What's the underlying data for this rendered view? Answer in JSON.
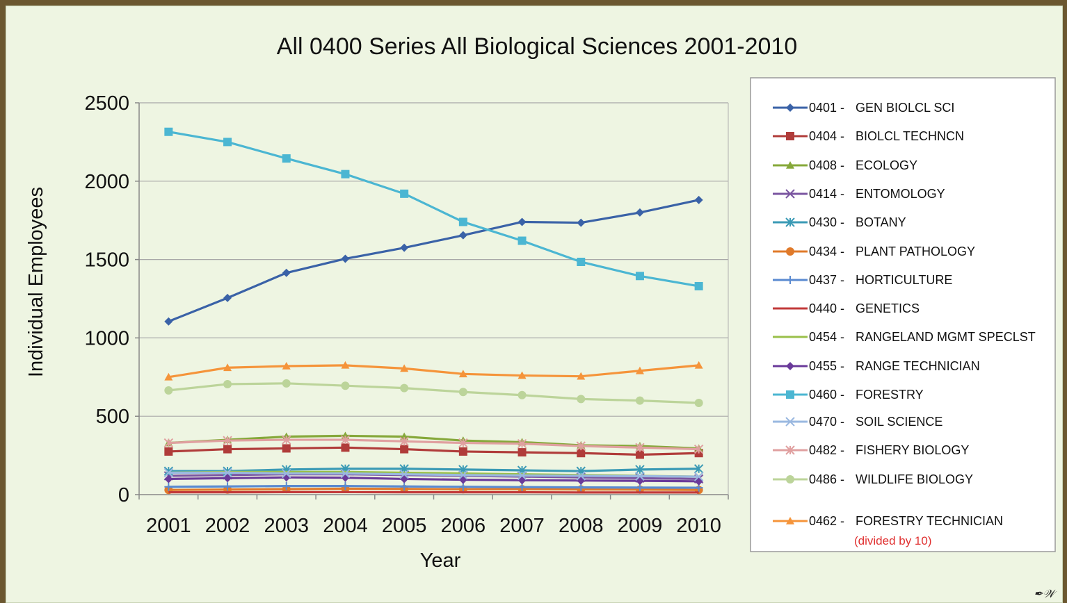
{
  "chart_data": {
    "type": "line",
    "title": "All 0400 Series All Biological Sciences 2001-2010",
    "xlabel": "Year",
    "ylabel": "Individual Employees",
    "ylim": [
      0,
      2500
    ],
    "yticks": [
      "0",
      "500",
      "1000",
      "1500",
      "2000",
      "2500"
    ],
    "categories": [
      "2001",
      "2002",
      "2003",
      "2004",
      "2005",
      "2006",
      "2007",
      "2008",
      "2009",
      "2010"
    ],
    "grid": "horizontal",
    "legend": "right",
    "series": [
      {
        "code": "0401 -",
        "name": "GEN BIOLCL SCI",
        "color": "#3a62a7",
        "marker": "diamond",
        "values": [
          1105,
          1255,
          1415,
          1505,
          1575,
          1655,
          1740,
          1735,
          1800,
          1880
        ]
      },
      {
        "code": "0404 -",
        "name": "BIOLCL TECHNCN",
        "color": "#b03c3a",
        "marker": "square",
        "values": [
          275,
          290,
          295,
          300,
          290,
          275,
          270,
          265,
          255,
          265
        ]
      },
      {
        "code": "0408 -",
        "name": "ECOLOGY",
        "color": "#86a83a",
        "marker": "triangle",
        "values": [
          330,
          350,
          370,
          375,
          370,
          345,
          335,
          315,
          310,
          295
        ]
      },
      {
        "code": "0414 -",
        "name": "ENTOMOLOGY",
        "color": "#7a55a0",
        "marker": "x",
        "values": [
          120,
          125,
          130,
          130,
          125,
          120,
          115,
          110,
          105,
          100
        ]
      },
      {
        "code": "0430 -",
        "name": "BOTANY",
        "color": "#3a9ab5",
        "marker": "star",
        "values": [
          150,
          150,
          160,
          165,
          165,
          160,
          155,
          150,
          160,
          165
        ]
      },
      {
        "code": "0434 -",
        "name": "PLANT PATHOLOGY",
        "color": "#e07a2a",
        "marker": "circle",
        "values": [
          30,
          32,
          35,
          38,
          36,
          34,
          35,
          33,
          32,
          30
        ]
      },
      {
        "code": "0437 -",
        "name": "HORTICULTURE",
        "color": "#5a8ad0",
        "marker": "plus",
        "values": [
          50,
          52,
          55,
          55,
          52,
          50,
          48,
          46,
          45,
          44
        ]
      },
      {
        "code": "0440 -",
        "name": "GENETICS",
        "color": "#c23a3a",
        "marker": "none",
        "values": [
          15,
          15,
          16,
          16,
          15,
          15,
          15,
          14,
          14,
          14
        ]
      },
      {
        "code": "0454 -",
        "name": "RANGELAND MGMT SPECLST",
        "color": "#9ac04a",
        "marker": "none",
        "values": [
          140,
          145,
          145,
          145,
          140,
          135,
          130,
          125,
          120,
          115
        ]
      },
      {
        "code": "0455 -",
        "name": "RANGE TECHNICIAN",
        "color": "#6a3a9a",
        "marker": "diamond",
        "values": [
          100,
          105,
          110,
          108,
          100,
          95,
          92,
          90,
          88,
          85
        ]
      },
      {
        "code": "0460 -",
        "name": "FORESTRY",
        "color": "#4bb6d2",
        "marker": "square",
        "values": [
          2315,
          2250,
          2145,
          2045,
          1920,
          1740,
          1620,
          1485,
          1395,
          1330
        ]
      },
      {
        "code": "0470 -",
        "name": "SOIL SCIENCE",
        "color": "#9ab8e0",
        "marker": "x",
        "values": [
          140,
          140,
          135,
          135,
          130,
          125,
          122,
          120,
          118,
          115
        ]
      },
      {
        "code": "0482 -",
        "name": "FISHERY BIOLOGY",
        "color": "#e0a0a0",
        "marker": "star",
        "values": [
          330,
          345,
          350,
          350,
          340,
          330,
          325,
          310,
          300,
          290
        ]
      },
      {
        "code": "0486 -",
        "name": "WILDLIFE BIOLOGY",
        "color": "#bcd49a",
        "marker": "circle",
        "values": [
          665,
          705,
          710,
          695,
          680,
          655,
          635,
          610,
          600,
          585
        ]
      },
      {
        "code": "0462 -",
        "name": "FORESTRY TECHNICIAN",
        "note": "(divided by 10)",
        "color": "#f5943a",
        "marker": "triangle",
        "values": [
          750,
          810,
          820,
          825,
          805,
          770,
          760,
          755,
          790,
          825
        ]
      }
    ]
  },
  "watermark": "✒𝒲"
}
